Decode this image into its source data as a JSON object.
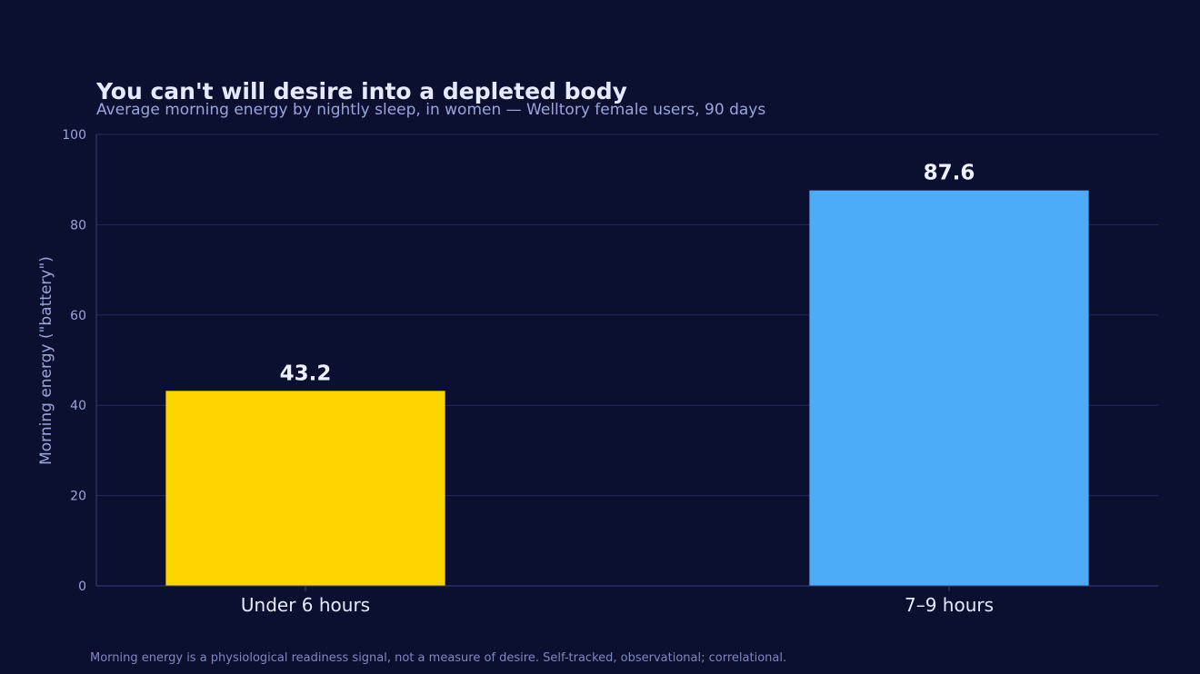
{
  "chart_data": {
    "type": "bar",
    "title": "You can't will desire into a depleted body",
    "subtitle": "Average morning energy by nightly sleep, in women — Welltory female users, 90 days",
    "xlabel": "",
    "ylabel": "Morning energy (\"battery\")",
    "categories": [
      "Under 6 hours",
      "7–9 hours"
    ],
    "values": [
      43.2,
      87.6
    ],
    "value_labels": [
      "43.2",
      "87.6"
    ],
    "colors": [
      "#ffd500",
      "#4dabf7"
    ],
    "ylim": [
      0,
      100
    ],
    "yticks": [
      0,
      20,
      40,
      60,
      80,
      100
    ],
    "grid": true,
    "legend": "none"
  },
  "footnote": "Morning energy is a physiological readiness signal, not a measure of desire. Self-tracked, observational; correlational.",
  "colors": {
    "background": "#0b0f30",
    "grid": "#232a5c",
    "axis": "#3a4280"
  }
}
